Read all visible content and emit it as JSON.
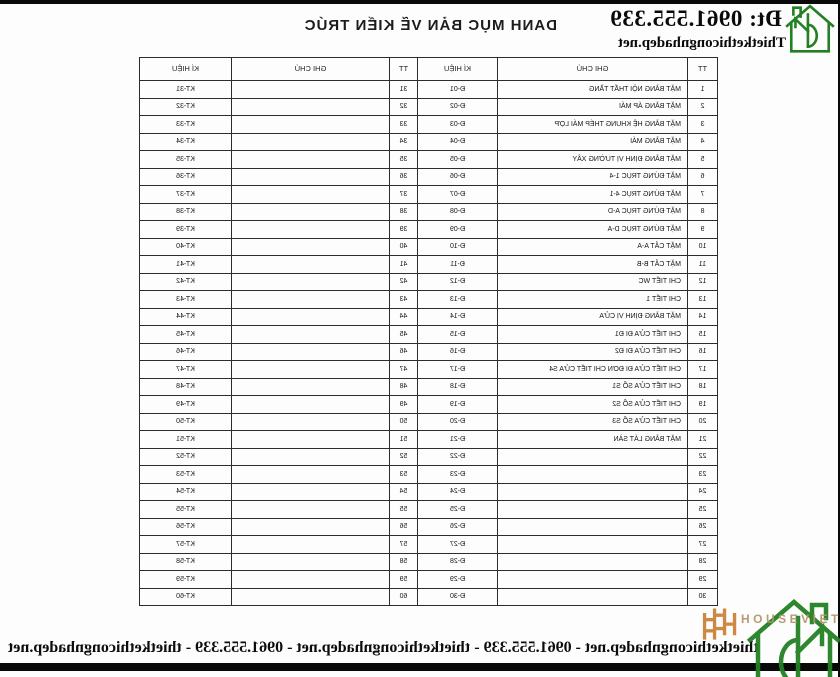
{
  "page": {
    "title": "DANH MỤC BẢN VẼ KIẾN TRÚC",
    "phone": "Đt: 0961.555.339",
    "website": "Thietkethicongnhadep.net",
    "footer": "thietkethicongnhadep.net - 0961.555.339 - thietkethicongnhadep.net - 0961.555.339 - thietkethicongnhadep.net"
  },
  "logo": {
    "icon": "green-house-logo",
    "color": "#238023"
  },
  "watermark": {
    "brand": "HOUSEVIET",
    "monogram_icon": "double-h-monogram",
    "monogram_color": "#c87c31",
    "text_color": "#b5976b",
    "house_color": "#238023"
  },
  "table": {
    "headers": [
      "TT",
      "GHI CHÚ",
      "KÍ HIỆU",
      "TT",
      "GHI CHÚ",
      "KÍ HIỆU"
    ],
    "rows": [
      {
        "tt": "1",
        "name": "MẶT BẰNG NỘI THẤT TẦNG",
        "code": "Đ-01",
        "tt2": "31",
        "note": "",
        "code2": "KT-31"
      },
      {
        "tt": "2",
        "name": "MẶT BẰNG ÁP MÁI",
        "code": "Đ-02",
        "tt2": "32",
        "note": "",
        "code2": "KT-32"
      },
      {
        "tt": "3",
        "name": "MẶT BẰNG HỆ KHUNG THÉP MÁI LỢP",
        "code": "Đ-03",
        "tt2": "33",
        "note": "",
        "code2": "KT-33"
      },
      {
        "tt": "4",
        "name": "MẶT BẰNG MÁI",
        "code": "Đ-04",
        "tt2": "34",
        "note": "",
        "code2": "KT-34"
      },
      {
        "tt": "5",
        "name": "MẶT BẰNG ĐỊNH VỊ TƯỜNG XÂY",
        "code": "Đ-05",
        "tt2": "35",
        "note": "",
        "code2": "KT-35"
      },
      {
        "tt": "6",
        "name": "MẶT ĐỨNG TRỤC 1-4",
        "code": "Đ-06",
        "tt2": "36",
        "note": "",
        "code2": "KT-36"
      },
      {
        "tt": "7",
        "name": "MẶT ĐỨNG TRỤC 4-1",
        "code": "Đ-07",
        "tt2": "37",
        "note": "",
        "code2": "KT-37"
      },
      {
        "tt": "8",
        "name": "MẶT ĐỨNG TRỤC A-D",
        "code": "Đ-08",
        "tt2": "38",
        "note": "",
        "code2": "KT-38"
      },
      {
        "tt": "9",
        "name": "MẶT ĐỨNG TRỤC D-A",
        "code": "Đ-09",
        "tt2": "39",
        "note": "",
        "code2": "KT-39"
      },
      {
        "tt": "10",
        "name": "MẶT CẮT A-A",
        "code": "Đ-10",
        "tt2": "40",
        "note": "",
        "code2": "KT-40"
      },
      {
        "tt": "11",
        "name": "MẶT CẮT B-B",
        "code": "Đ-11",
        "tt2": "41",
        "note": "",
        "code2": "KT-41"
      },
      {
        "tt": "12",
        "name": "CHI TIẾT WC",
        "code": "Đ-12",
        "tt2": "42",
        "note": "",
        "code2": "KT-42"
      },
      {
        "tt": "13",
        "name": "CHI TIẾT 1",
        "code": "Đ-13",
        "tt2": "43",
        "note": "",
        "code2": "KT-43"
      },
      {
        "tt": "14",
        "name": "MẶT BẰNG ĐỊNH VỊ CỬA",
        "code": "Đ-14",
        "tt2": "44",
        "note": "",
        "code2": "KT-44"
      },
      {
        "tt": "15",
        "name": "CHI TIẾT CỬA ĐI Đ1",
        "code": "Đ-15",
        "tt2": "45",
        "note": "",
        "code2": "KT-45"
      },
      {
        "tt": "16",
        "name": "CHI TIẾT CỬA ĐI Đ2",
        "code": "Đ-16",
        "tt2": "46",
        "note": "",
        "code2": "KT-46"
      },
      {
        "tt": "17",
        "name": "CHI TIẾT CỬA ĐI ĐƠN CHI TIẾT CỬA S4",
        "code": "Đ-17",
        "tt2": "47",
        "note": "",
        "code2": "KT-47"
      },
      {
        "tt": "18",
        "name": "CHI TIẾT CỬA SỔ S1",
        "code": "Đ-18",
        "tt2": "48",
        "note": "",
        "code2": "KT-48"
      },
      {
        "tt": "19",
        "name": "CHI TIẾT CỬA SỔ S2",
        "code": "Đ-19",
        "tt2": "49",
        "note": "",
        "code2": "KT-49"
      },
      {
        "tt": "20",
        "name": "CHI TIẾT CỬA SỔ S3",
        "code": "Đ-20",
        "tt2": "50",
        "note": "",
        "code2": "KT-50"
      },
      {
        "tt": "21",
        "name": "MẶT BẰNG LÁT SÀN",
        "code": "Đ-21",
        "tt2": "51",
        "note": "",
        "code2": "KT-51"
      },
      {
        "tt": "22",
        "name": "",
        "code": "Đ-22",
        "tt2": "52",
        "note": "",
        "code2": "KT-52"
      },
      {
        "tt": "23",
        "name": "",
        "code": "Đ-23",
        "tt2": "53",
        "note": "",
        "code2": "KT-53"
      },
      {
        "tt": "24",
        "name": "",
        "code": "Đ-24",
        "tt2": "54",
        "note": "",
        "code2": "KT-54"
      },
      {
        "tt": "25",
        "name": "",
        "code": "Đ-25",
        "tt2": "55",
        "note": "",
        "code2": "KT-55"
      },
      {
        "tt": "26",
        "name": "",
        "code": "Đ-26",
        "tt2": "56",
        "note": "",
        "code2": "KT-56"
      },
      {
        "tt": "27",
        "name": "",
        "code": "Đ-27",
        "tt2": "57",
        "note": "",
        "code2": "KT-57"
      },
      {
        "tt": "28",
        "name": "",
        "code": "Đ-28",
        "tt2": "58",
        "note": "",
        "code2": "KT-58"
      },
      {
        "tt": "29",
        "name": "",
        "code": "Đ-29",
        "tt2": "59",
        "note": "",
        "code2": "KT-59"
      },
      {
        "tt": "30",
        "name": "",
        "code": "Đ-30",
        "tt2": "60",
        "note": "",
        "code2": "KT-60"
      }
    ]
  }
}
